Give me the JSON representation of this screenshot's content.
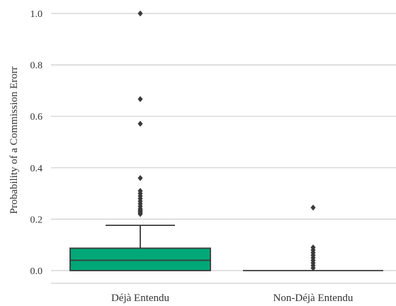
{
  "chart_data": {
    "type": "box",
    "title": "",
    "xlabel": "",
    "ylabel": "Probability of a Commission Erorr",
    "ylim": [
      -0.05,
      1.02
    ],
    "yticks": [
      0.0,
      0.2,
      0.4,
      0.6,
      0.8,
      1.0
    ],
    "ytick_labels": [
      "0.0",
      "0.2",
      "0.4",
      "0.6",
      "0.8",
      "1.0"
    ],
    "grid": true,
    "categories": [
      "Déjà Entendu",
      "Non-Déjà Entendu"
    ],
    "boxes": [
      {
        "category": "Déjà Entendu",
        "q1": 0.0,
        "median": 0.04,
        "q3": 0.087,
        "whisker_low": 0.0,
        "whisker_high": 0.176,
        "outliers": [
          1.0,
          0.667,
          0.571,
          0.36,
          0.31,
          0.3,
          0.29,
          0.28,
          0.27,
          0.26,
          0.25,
          0.24,
          0.235,
          0.23,
          0.225,
          0.22
        ],
        "color": "#00a878"
      },
      {
        "category": "Non-Déjà Entendu",
        "q1": 0.0,
        "median": 0.0,
        "q3": 0.0,
        "whisker_low": 0.0,
        "whisker_high": 0.0,
        "outliers": [
          0.245,
          0.09,
          0.08,
          0.07,
          0.06,
          0.05,
          0.04,
          0.03,
          0.02,
          0.01
        ],
        "color": "#00a878"
      }
    ]
  }
}
